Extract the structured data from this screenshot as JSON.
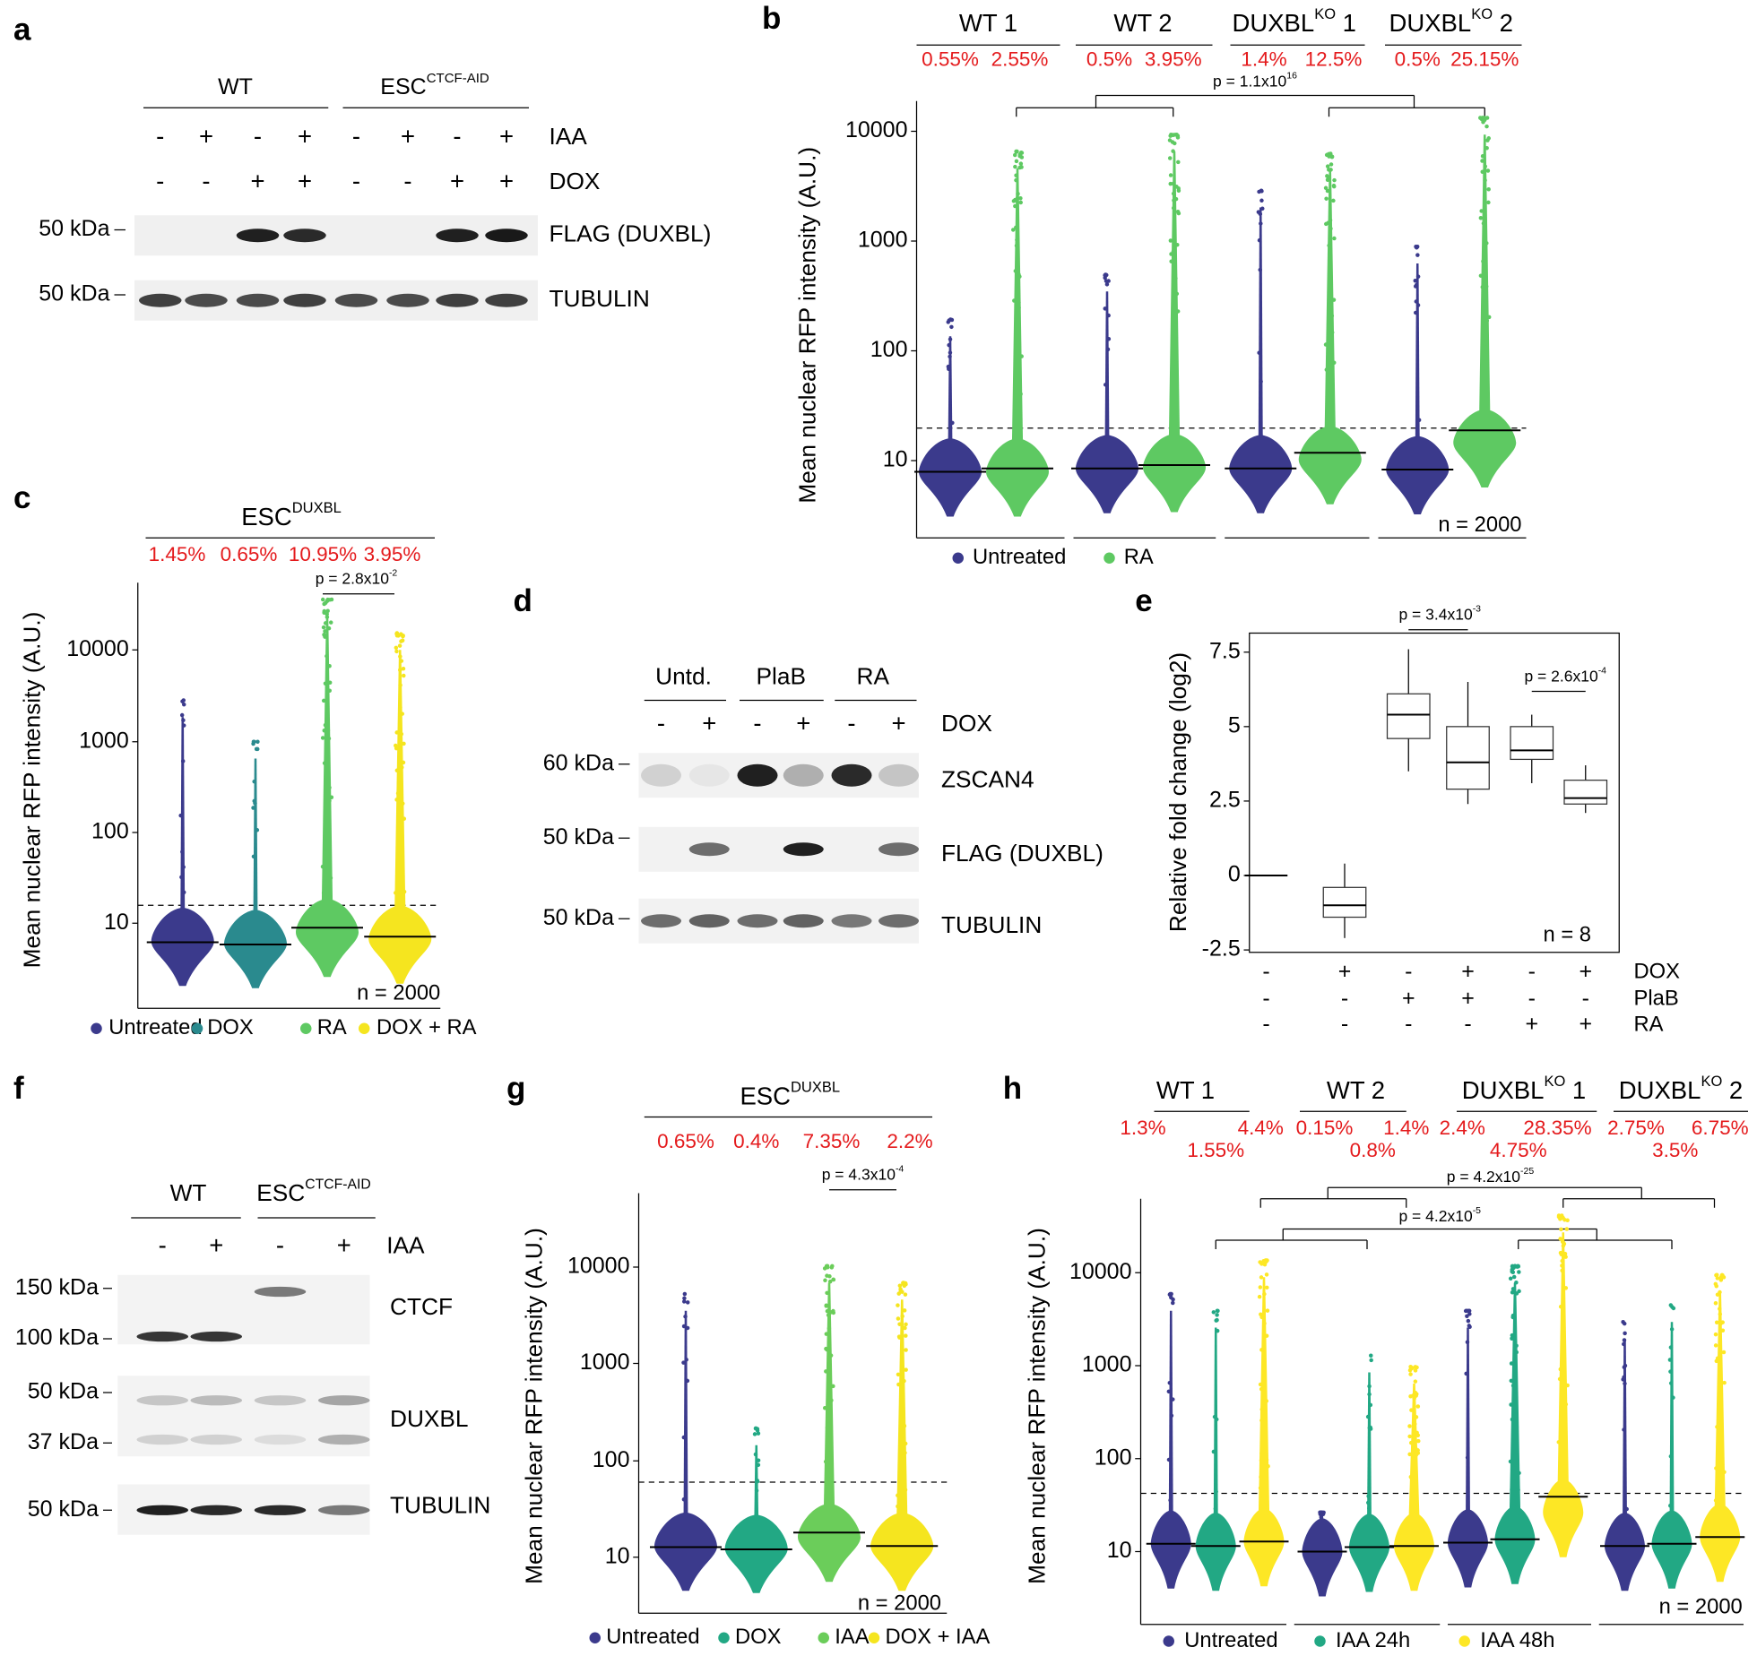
{
  "a": {
    "label": "a",
    "groups": [
      {
        "name": "WT"
      },
      {
        "name": "ESC",
        "sup": "CTCF-AID"
      }
    ],
    "treatments": [
      {
        "name": "IAA",
        "signs": [
          "-",
          "+",
          "-",
          "+",
          "-",
          "+",
          "-",
          "+"
        ]
      },
      {
        "name": "DOX",
        "signs": [
          "-",
          "-",
          "+",
          "+",
          "-",
          "-",
          "+",
          "+"
        ]
      }
    ],
    "blots": [
      {
        "marker": "50 kDa",
        "name": "FLAG (DUXBL)"
      },
      {
        "marker": "50 kDa",
        "name": "TUBULIN"
      }
    ]
  },
  "b": {
    "label": "b",
    "groups": [
      {
        "name": "WT 1"
      },
      {
        "name": "WT 2"
      },
      {
        "name": "DUXBL",
        "sup": "KO",
        "suffix": " 1"
      },
      {
        "name": "DUXBL",
        "sup": "KO",
        "suffix": " 2"
      }
    ],
    "percents": [
      "0.55%",
      "2.55%",
      "0.5%",
      "3.95%",
      "1.4%",
      "12.5%",
      "0.5%",
      "25.15%"
    ],
    "pvalue": {
      "text": "p = 1.1x10",
      "exp": "16"
    },
    "ylabel": "Mean nuclear RFP intensity (A.U.)",
    "yticks": [
      "10",
      "100",
      "1000",
      "10000"
    ],
    "n": "n = 2000",
    "legend": [
      "Untreated",
      "RA"
    ]
  },
  "c": {
    "label": "c",
    "title": {
      "name": "ESC",
      "sup": "DUXBL"
    },
    "percents": [
      "1.45%",
      "0.65%",
      "10.95%",
      "3.95%"
    ],
    "pvalue": {
      "text": "p = 2.8x10",
      "exp": "-2"
    },
    "ylabel": "Mean nuclear RFP intensity (A.U.)",
    "yticks": [
      "10",
      "100",
      "1000",
      "10000"
    ],
    "n": "n = 2000",
    "legend": [
      "Untreated",
      "DOX",
      "RA",
      "DOX + RA"
    ]
  },
  "d": {
    "label": "d",
    "groups": [
      "Untd.",
      "PlaB",
      "RA"
    ],
    "treatments": [
      {
        "name": "DOX",
        "signs": [
          "-",
          "+",
          "-",
          "+",
          "-",
          "+"
        ]
      }
    ],
    "blots": [
      {
        "marker": "60 kDa",
        "name": "ZSCAN4"
      },
      {
        "marker": "50 kDa",
        "name": "FLAG (DUXBL)"
      },
      {
        "marker": "50 kDa",
        "name": "TUBULIN"
      }
    ]
  },
  "e": {
    "label": "e",
    "type": "box",
    "ylabel": "Relative fold change (log2)",
    "ylim": [
      -2.58,
      8.14
    ],
    "yticks": [
      -2.5,
      0,
      2.5,
      5,
      7.5
    ],
    "boxes": [
      {
        "min": 0,
        "q1": 0,
        "median": 0,
        "q3": 0,
        "max": 0
      },
      {
        "min": -2.1,
        "q1": -1.4,
        "median": -1.0,
        "q3": -0.4,
        "max": 0.4
      },
      {
        "min": 3.5,
        "q1": 4.6,
        "median": 5.4,
        "q3": 6.1,
        "max": 7.6
      },
      {
        "min": 2.4,
        "q1": 2.9,
        "median": 3.8,
        "q3": 5.0,
        "max": 6.5
      },
      {
        "min": 3.1,
        "q1": 3.9,
        "median": 4.2,
        "q3": 5.0,
        "max": 5.4
      },
      {
        "min": 2.1,
        "q1": 2.4,
        "median": 2.6,
        "q3": 3.2,
        "max": 3.7
      }
    ],
    "treatments": [
      {
        "name": "DOX",
        "signs": [
          "-",
          "+",
          "-",
          "+",
          "-",
          "+"
        ]
      },
      {
        "name": "PlaB",
        "signs": [
          "-",
          "-",
          "+",
          "+",
          "-",
          "-"
        ]
      },
      {
        "name": "RA",
        "signs": [
          "-",
          "-",
          "-",
          "-",
          "+",
          "+"
        ]
      }
    ],
    "pvalues": [
      {
        "text": "p = 3.4x10",
        "exp": "-3"
      },
      {
        "text": "p = 2.6x10",
        "exp": "-4"
      }
    ],
    "n": "n = 8"
  },
  "f": {
    "label": "f",
    "groups": [
      {
        "name": "WT"
      },
      {
        "name": "ESC",
        "sup": "CTCF-AID"
      }
    ],
    "treatments": [
      {
        "name": "IAA",
        "signs": [
          "-",
          "+",
          "-",
          "+"
        ]
      }
    ],
    "markers": [
      "150 kDa",
      "100 kDa",
      "50 kDa",
      "37 kDa",
      "50 kDa"
    ],
    "blots": [
      "CTCF",
      "DUXBL",
      "TUBULIN"
    ]
  },
  "g": {
    "label": "g",
    "title": {
      "name": "ESC",
      "sup": "DUXBL"
    },
    "percents": [
      "0.65%",
      "0.4%",
      "7.35%",
      "2.2%"
    ],
    "pvalue": {
      "text": "p = 4.3x10",
      "exp": "-4"
    },
    "ylabel": "Mean nuclear RFP intensity (A.U.)",
    "yticks": [
      "10",
      "100",
      "1000",
      "10000"
    ],
    "n": "n = 2000",
    "legend": [
      "Untreated",
      "DOX",
      "IAA",
      "DOX + IAA"
    ]
  },
  "h": {
    "label": "h",
    "groups": [
      {
        "name": "WT 1"
      },
      {
        "name": "WT 2"
      },
      {
        "name": "DUXBL",
        "sup": "KO",
        "suffix": " 1"
      },
      {
        "name": "DUXBL",
        "sup": "KO",
        "suffix": " 2"
      }
    ],
    "percents": [
      [
        "1.3%",
        "1.55%",
        "4.4%"
      ],
      [
        "0.15%",
        "0.8%",
        "1.4%"
      ],
      [
        "2.4%",
        "4.75%",
        "28.35%"
      ],
      [
        "2.75%",
        "3.5%",
        "6.75%"
      ]
    ],
    "pvalues": [
      {
        "text": "p = 4.2x10",
        "exp": "-25"
      },
      {
        "text": "p = 4.2x10",
        "exp": "-5"
      }
    ],
    "ylabel": "Mean nuclear RFP intensity (A.U.)",
    "yticks": [
      "10",
      "100",
      "1000",
      "10000"
    ],
    "n": "n = 2000",
    "legend": [
      "Untreated",
      "IAA 24h",
      "IAA 48h"
    ]
  }
}
